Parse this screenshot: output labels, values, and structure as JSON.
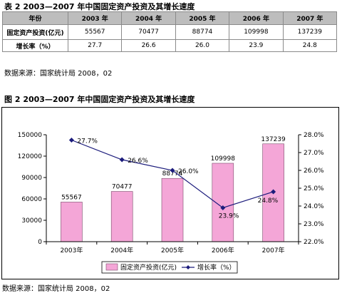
{
  "table": {
    "title": "表 2 2003—2007 年中国固定资产投资及其增长速度",
    "corner_header": "年份",
    "years": [
      "2003 年",
      "2004 年",
      "2005 年",
      "2006 年",
      "2007 年"
    ],
    "rows": [
      {
        "label": "固定资产投资(亿元)",
        "values": [
          "55567",
          "70477",
          "88774",
          "109998",
          "137239"
        ]
      },
      {
        "label": "增长率（%）",
        "values": [
          "27.7",
          "26.6",
          "26.0",
          "23.9",
          "24.8"
        ]
      }
    ],
    "source": "数据来源：国家统计局 2008，02"
  },
  "figure": {
    "title": "图 2 2003—2007 年中国固定资产投资及其增长速度",
    "source": "数据来源：国家统计局 2008，02"
  },
  "chart_data": {
    "type": "bar",
    "categories": [
      "2003年",
      "2004年",
      "2005年",
      "2006年",
      "2007年"
    ],
    "series": [
      {
        "name": "固定资产投资(亿元)",
        "type": "bar",
        "axis": "left",
        "values": [
          55567,
          70477,
          88774,
          109998,
          137239
        ],
        "labels": [
          "55567",
          "70477",
          "88774",
          "109998",
          "137239"
        ],
        "color": "#f4a6d7"
      },
      {
        "name": "增长率（%）",
        "type": "line",
        "axis": "right",
        "values": [
          27.7,
          26.6,
          26.0,
          23.9,
          24.8
        ],
        "labels": [
          "27.7%",
          "26.6%",
          "26.0%",
          "23.9%",
          "24.8%"
        ],
        "color": "#1c1c7c"
      }
    ],
    "y_left": {
      "min": 0,
      "max": 150000,
      "ticks": [
        "0",
        "30000",
        "60000",
        "90000",
        "120000",
        "150000"
      ]
    },
    "y_right": {
      "min": 22,
      "max": 28,
      "ticks": [
        "22.0%",
        "23.0%",
        "24.0%",
        "25.0%",
        "26.0%",
        "27.0%",
        "28.0%"
      ]
    },
    "grid": false,
    "legend_position": "bottom"
  }
}
